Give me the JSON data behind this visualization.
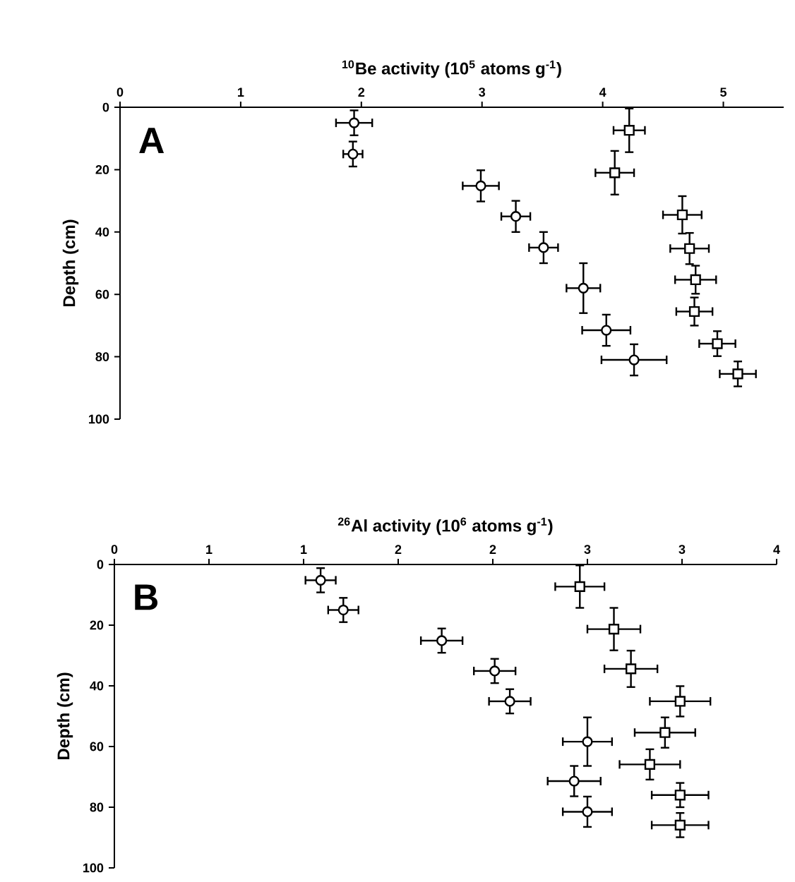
{
  "chart_data": [
    {
      "type": "scatter",
      "xlabel": "$^{10}$Be activity (10$^{5}$ atoms g$^{-1}$)",
      "ylabel": "Depth (cm)",
      "annotations": [
        "A"
      ],
      "xlim": [
        0,
        5.5
      ],
      "xticks": [
        0,
        1,
        2,
        3,
        4,
        5
      ],
      "ylim": [
        100,
        0
      ],
      "yticks": [
        0,
        20,
        40,
        60,
        80,
        100
      ],
      "grid": false,
      "legend": false,
      "series": [
        {
          "color": "#000000",
          "marker": "circle",
          "x": [
            1.94,
            1.93,
            2.99,
            3.28,
            3.51,
            3.84,
            4.03,
            4.26
          ],
          "values": [
            5,
            15,
            25.2,
            35,
            45,
            58,
            71.5,
            81
          ],
          "xerrors": [
            0.15,
            0.08,
            0.15,
            0.12,
            0.12,
            0.14,
            0.2,
            0.27
          ],
          "errors": [
            4,
            4,
            5,
            5,
            5,
            8,
            5,
            5
          ]
        },
        {
          "color": "#000000",
          "marker": "square",
          "x": [
            4.22,
            4.1,
            4.66,
            4.72,
            4.77,
            4.76,
            4.95,
            5.12
          ],
          "values": [
            7.4,
            21,
            34.5,
            45.3,
            55.3,
            65.5,
            75.8,
            85.5
          ],
          "xerrors": [
            0.13,
            0.16,
            0.16,
            0.16,
            0.17,
            0.15,
            0.15,
            0.15
          ],
          "errors": [
            7,
            7,
            6,
            5,
            4.5,
            4.5,
            4,
            4
          ]
        }
      ]
    },
    {
      "type": "scatter",
      "xlabel": "$^{26}$Al activity (10$^{6}$ atoms g$^{-1}$)",
      "ylabel": "Depth (cm)",
      "annotations": [
        "B"
      ],
      "xlim": [
        0,
        3.5
      ],
      "xticks": [
        0,
        {
          "value": 0.5,
          "label": "1"
        },
        1,
        {
          "value": 1.5,
          "label": "2"
        },
        2,
        {
          "value": 2.5,
          "label": "3"
        },
        3,
        {
          "value": 3.5,
          "label": "4"
        }
      ],
      "ylim": [
        100,
        0
      ],
      "yticks": [
        0,
        20,
        40,
        60,
        80,
        100
      ],
      "grid": false,
      "legend": false,
      "series": [
        {
          "color": "#000000",
          "marker": "circle",
          "x": [
            1.09,
            1.21,
            1.73,
            2.01,
            2.09,
            2.5,
            2.43,
            2.5
          ],
          "values": [
            5.2,
            15,
            25.1,
            35.1,
            45.1,
            58.4,
            71.4,
            81.5
          ],
          "xerrors": [
            0.08,
            0.08,
            0.11,
            0.11,
            0.11,
            0.13,
            0.14,
            0.13
          ],
          "errors": [
            4,
            4,
            4,
            4,
            4,
            8,
            5,
            5
          ]
        },
        {
          "color": "#000000",
          "marker": "square",
          "x": [
            2.46,
            2.64,
            2.73,
            2.99,
            2.91,
            2.83,
            2.99,
            2.99
          ],
          "values": [
            7.3,
            21.3,
            34.4,
            45.1,
            55.4,
            65.9,
            76,
            85.9
          ],
          "xerrors": [
            0.13,
            0.14,
            0.14,
            0.16,
            0.16,
            0.16,
            0.15,
            0.15
          ],
          "errors": [
            7,
            7,
            6,
            5,
            5,
            5,
            4,
            4
          ]
        }
      ]
    }
  ]
}
